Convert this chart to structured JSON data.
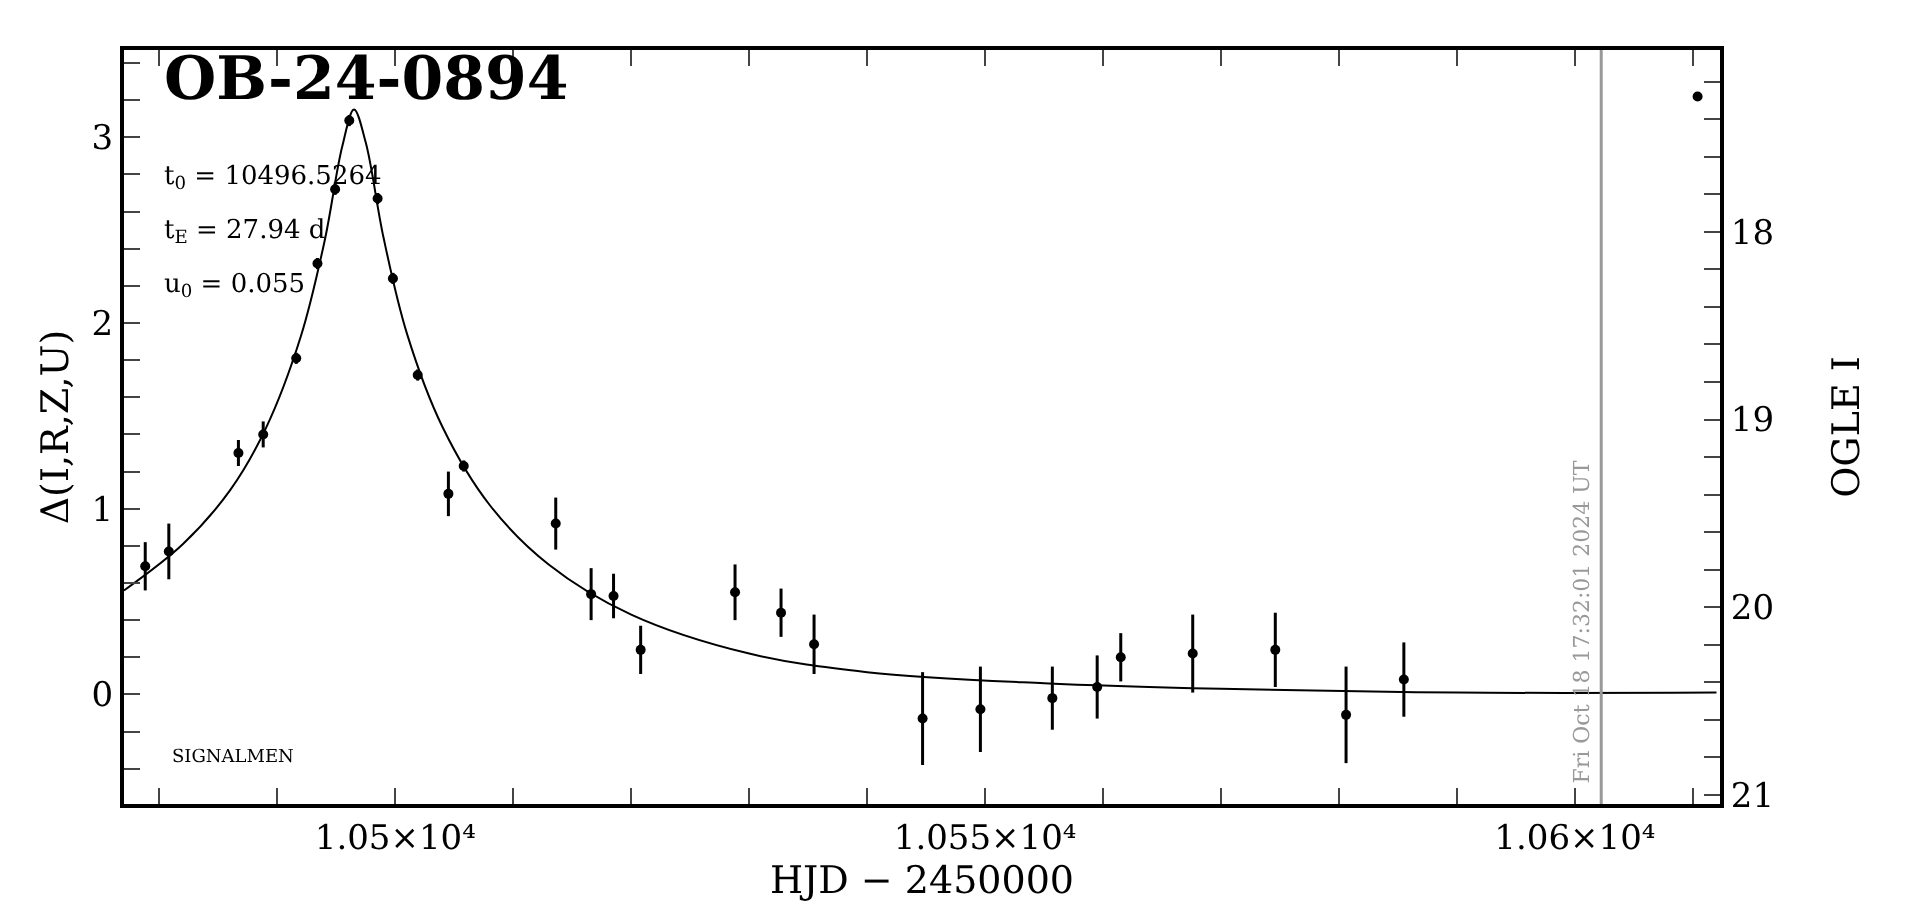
{
  "chart_data": {
    "type": "scatter",
    "title": "OB-24-0894",
    "xlabel": "HJD − 2450000",
    "ylabel": "Δ(I,R,Z,U)",
    "y2label": "OGLE I",
    "annotations": [
      "t$_{0}$ = 10496.5264",
      "t$_{E}$ = 27.94 d",
      "u$_{0}$ = 0.055",
      {
        "text": "Fri Oct 18 17:32:01 2024 UT",
        "x": 10602.23,
        "y": -0.5
      },
      "SIGNALMEN"
    ],
    "series": [
      {
        "color": "#000000",
        "marker": "circle",
        "x": [
          10478.8,
          10480.8,
          10486.7,
          10488.8,
          10491.6,
          10493.4,
          10494.9,
          10496.1,
          10498.5,
          10499.8,
          10501.9,
          10504.5,
          10505.8,
          10513.6,
          10516.6,
          10518.5,
          10520.8,
          10528.8,
          10532.7,
          10535.5,
          10544.7,
          10549.6,
          10555.7,
          10559.5,
          10561.5,
          10567.6,
          10574.6,
          10580.6,
          10585.5
        ],
        "values": [
          0.69,
          0.77,
          1.3,
          1.4,
          1.81,
          2.32,
          2.72,
          3.09,
          2.67,
          2.24,
          1.72,
          1.08,
          1.23,
          0.92,
          0.54,
          0.53,
          0.24,
          0.55,
          0.44,
          0.27,
          -0.13,
          -0.08,
          -0.02,
          0.04,
          0.2,
          0.22,
          0.24,
          -0.11,
          0.08
        ],
        "errors": [
          0.13,
          0.15,
          0.07,
          0.07,
          0.03,
          0.03,
          0.03,
          0.03,
          0.03,
          0.03,
          0.03,
          0.12,
          0.03,
          0.14,
          0.14,
          0.12,
          0.13,
          0.15,
          0.13,
          0.16,
          0.25,
          0.23,
          0.17,
          0.17,
          0.13,
          0.21,
          0.2,
          0.26,
          0.2
        ]
      },
      {
        "type": "line",
        "color": "#000000",
        "x": [
          10477,
          10482,
          10486,
          10489,
          10492,
          10494,
          10495.5,
          10496.5,
          10497.5,
          10499,
          10501,
          10504,
          10508,
          10513,
          10520,
          10530,
          10540,
          10555,
          10570,
          10590,
          10612
        ],
        "values": [
          0.56,
          0.81,
          1.1,
          1.43,
          1.93,
          2.44,
          2.95,
          3.15,
          2.97,
          2.46,
          1.94,
          1.44,
          1.02,
          0.7,
          0.43,
          0.22,
          0.12,
          0.06,
          0.03,
          0.01,
          0.01
        ]
      },
      {
        "color": "#000000",
        "marker": "circle",
        "x": [
          10610.4
        ],
        "values": [
          3.22
        ]
      }
    ],
    "xlim": [
      10477,
      10612.3
    ],
    "ylim": [
      -0.59,
      3.47
    ],
    "y2lim": [
      21.05,
      17.03
    ],
    "xticks": [
      {
        "value": 10480,
        "label": null
      },
      {
        "value": 10490,
        "label": null
      },
      {
        "value": 10500,
        "label": "1.05×10⁴"
      },
      {
        "value": 10510,
        "label": null
      },
      {
        "value": 10520,
        "label": null
      },
      {
        "value": 10530,
        "label": null
      },
      {
        "value": 10540,
        "label": null
      },
      {
        "value": 10550,
        "label": "1.055×10⁴"
      },
      {
        "value": 10560,
        "label": null
      },
      {
        "value": 10570,
        "label": null
      },
      {
        "value": 10580,
        "label": null
      },
      {
        "value": 10590,
        "label": null
      },
      {
        "value": 10600,
        "label": "1.06×10⁴"
      },
      {
        "value": 10610,
        "label": null
      }
    ],
    "yticks": [
      {
        "value": -0.4,
        "label": null
      },
      {
        "value": -0.2,
        "label": null
      },
      0,
      {
        "value": 0.2,
        "label": null
      },
      {
        "value": 0.4,
        "label": null
      },
      {
        "value": 0.6,
        "label": null
      },
      {
        "value": 0.8,
        "label": null
      },
      1,
      {
        "value": 1.2,
        "label": null
      },
      {
        "value": 1.4,
        "label": null
      },
      {
        "value": 1.6,
        "label": null
      },
      {
        "value": 1.8,
        "label": null
      },
      2,
      {
        "value": 2.2,
        "label": null
      },
      {
        "value": 2.4,
        "label": null
      },
      {
        "value": 2.6,
        "label": null
      },
      {
        "value": 2.8,
        "label": null
      },
      3,
      {
        "value": 3.2,
        "label": null
      },
      {
        "value": 3.4,
        "label": null
      }
    ],
    "y2ticks": [
      {
        "value": 17.2,
        "label": null
      },
      {
        "value": 17.4,
        "label": null
      },
      {
        "value": 17.6,
        "label": null
      },
      {
        "value": 17.8,
        "label": null
      },
      18,
      {
        "value": 18.2,
        "label": null
      },
      {
        "value": 18.4,
        "label": null
      },
      {
        "value": 18.6,
        "label": null
      },
      {
        "value": 18.8,
        "label": null
      },
      19,
      {
        "value": 19.2,
        "label": null
      },
      {
        "value": 19.4,
        "label": null
      },
      {
        "value": 19.6,
        "label": null
      },
      {
        "value": 19.8,
        "label": null
      },
      20,
      {
        "value": 20.2,
        "label": null
      },
      {
        "value": 20.4,
        "label": null
      },
      {
        "value": 20.6,
        "label": null
      },
      {
        "value": 20.8,
        "label": null
      },
      21
    ],
    "ref_lines": [
      {
        "axis": "x",
        "value": 10602.23,
        "color": "#999999"
      }
    ],
    "line_style": "solid"
  }
}
